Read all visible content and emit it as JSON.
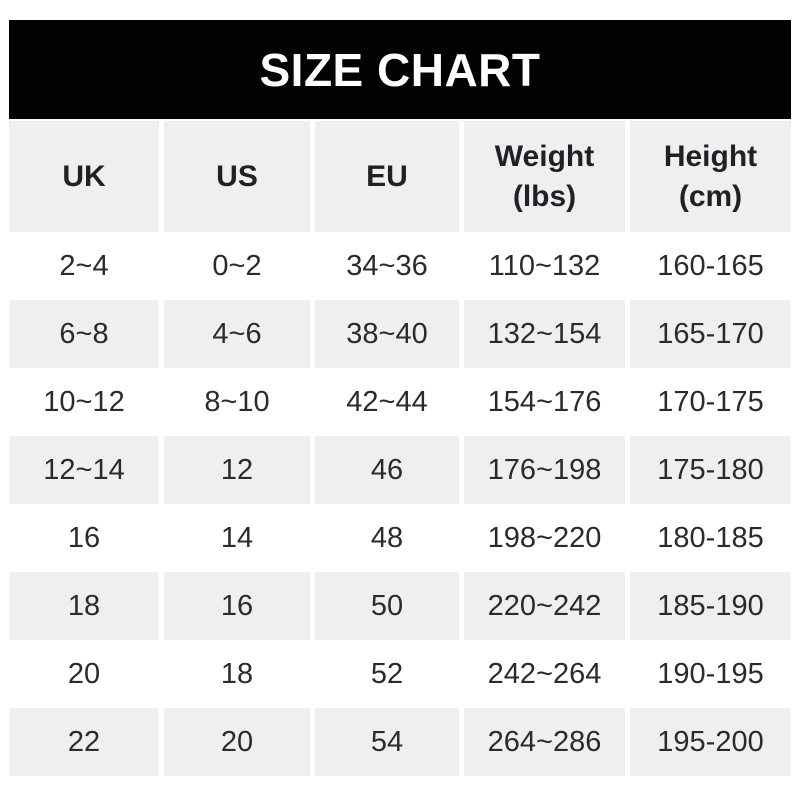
{
  "title": "SIZE CHART",
  "colors": {
    "banner_bg": "#020202",
    "banner_text": "#ffffff",
    "cell_gray": "#f0efef",
    "header_text": "#1e2126",
    "data_text": "#292b2f",
    "page_bg": "#ffffff"
  },
  "table": {
    "headers": [
      {
        "line1": "UK",
        "line2": ""
      },
      {
        "line1": "US",
        "line2": ""
      },
      {
        "line1": "EU",
        "line2": ""
      },
      {
        "line1": "Weight",
        "line2": "(lbs)"
      },
      {
        "line1": "Height",
        "line2": "(cm)"
      }
    ],
    "rows": [
      {
        "uk": "2~4",
        "us": "0~2",
        "eu": "34~36",
        "weight_lbs": "110~132",
        "height_cm": "160-165"
      },
      {
        "uk": "6~8",
        "us": "4~6",
        "eu": "38~40",
        "weight_lbs": "132~154",
        "height_cm": "165-170"
      },
      {
        "uk": "10~12",
        "us": "8~10",
        "eu": "42~44",
        "weight_lbs": "154~176",
        "height_cm": "170-175"
      },
      {
        "uk": "12~14",
        "us": "12",
        "eu": "46",
        "weight_lbs": "176~198",
        "height_cm": "175-180"
      },
      {
        "uk": "16",
        "us": "14",
        "eu": "48",
        "weight_lbs": "198~220",
        "height_cm": "180-185"
      },
      {
        "uk": "18",
        "us": "16",
        "eu": "50",
        "weight_lbs": "220~242",
        "height_cm": "185-190"
      },
      {
        "uk": "20",
        "us": "18",
        "eu": "52",
        "weight_lbs": "242~264",
        "height_cm": "190-195"
      },
      {
        "uk": "22",
        "us": "20",
        "eu": "54",
        "weight_lbs": "264~286",
        "height_cm": "195-200"
      }
    ]
  },
  "chart_data": {
    "type": "table",
    "title": "SIZE CHART",
    "columns": [
      "UK",
      "US",
      "EU",
      "Weight (lbs)",
      "Height (cm)"
    ],
    "rows": [
      [
        "2~4",
        "0~2",
        "34~36",
        "110~132",
        "160-165"
      ],
      [
        "6~8",
        "4~6",
        "38~40",
        "132~154",
        "165-170"
      ],
      [
        "10~12",
        "8~10",
        "42~44",
        "154~176",
        "170-175"
      ],
      [
        "12~14",
        "12",
        "46",
        "176~198",
        "175-180"
      ],
      [
        "16",
        "14",
        "48",
        "198~220",
        "180-185"
      ],
      [
        "18",
        "16",
        "50",
        "220~242",
        "185-190"
      ],
      [
        "20",
        "18",
        "52",
        "242~264",
        "190-195"
      ],
      [
        "22",
        "20",
        "54",
        "264~286",
        "195-200"
      ]
    ],
    "layout": {
      "header_background": "#f0efef",
      "row_alternating_backgrounds": [
        "#ffffff",
        "#f0efef"
      ],
      "banner_background": "#020202",
      "grid": "off"
    }
  }
}
